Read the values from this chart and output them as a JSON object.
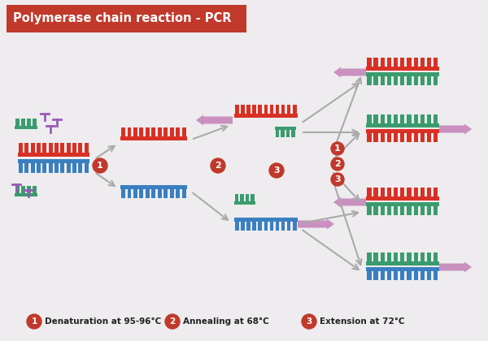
{
  "title": "Polymerase chain reaction - PCR",
  "title_bg": "#c0392b",
  "title_color": "#ffffff",
  "bg_color": "#eeecee",
  "legend": [
    {
      "num": "1",
      "text": "Denaturation at 95-96°C"
    },
    {
      "num": "2",
      "text": "Annealing at 68°C"
    },
    {
      "num": "3",
      "text": "Extension at 72°C"
    }
  ],
  "red_strand": "#d93025",
  "blue_strand": "#3a7fc1",
  "teal_strand": "#3a9c6e",
  "green_strand": "#3a9c6e",
  "pink_arrow": "#c990c0",
  "arrow_color": "#999999",
  "primer_color": "#9b59b6",
  "step_circle_color": "#c0392b",
  "circle_border": "#e8a0a0"
}
